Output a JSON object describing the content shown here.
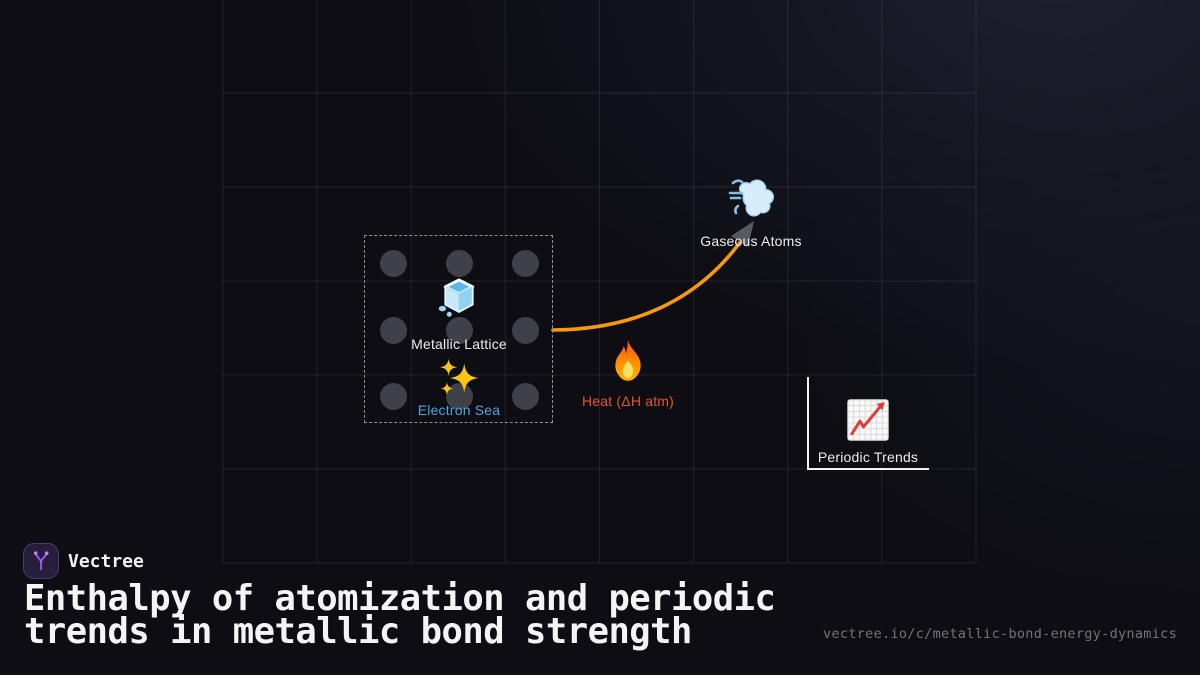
{
  "brand": {
    "name": "Vectree",
    "logo_icon": "vectree-branch-icon",
    "logo_color": "#a259f7"
  },
  "title": "Enthalpy of atomization and periodic trends in metallic bond strength",
  "footer_url": "vectree.io/c/metallic-bond-energy-dynamics",
  "diagram": {
    "lattice": {
      "label": "Metallic Lattice",
      "icon": "ice-cube-emoji",
      "atom_count": 9
    },
    "electron_sea": {
      "label": "Electron Sea",
      "icon": "sparkles-emoji",
      "label_color": "#4da6e0"
    },
    "heat": {
      "label": "Heat (ΔH atm)",
      "icon": "fire-emoji",
      "label_color": "#e2572e"
    },
    "gaseous_atoms": {
      "label": "Gaseous Atoms",
      "icon": "dashing-away-emoji"
    },
    "periodic_trends": {
      "label": "Periodic Trends",
      "icon": "chart-increasing-emoji"
    },
    "arrow_color": "#f8980c",
    "arrowhead_color": "#595a60"
  }
}
